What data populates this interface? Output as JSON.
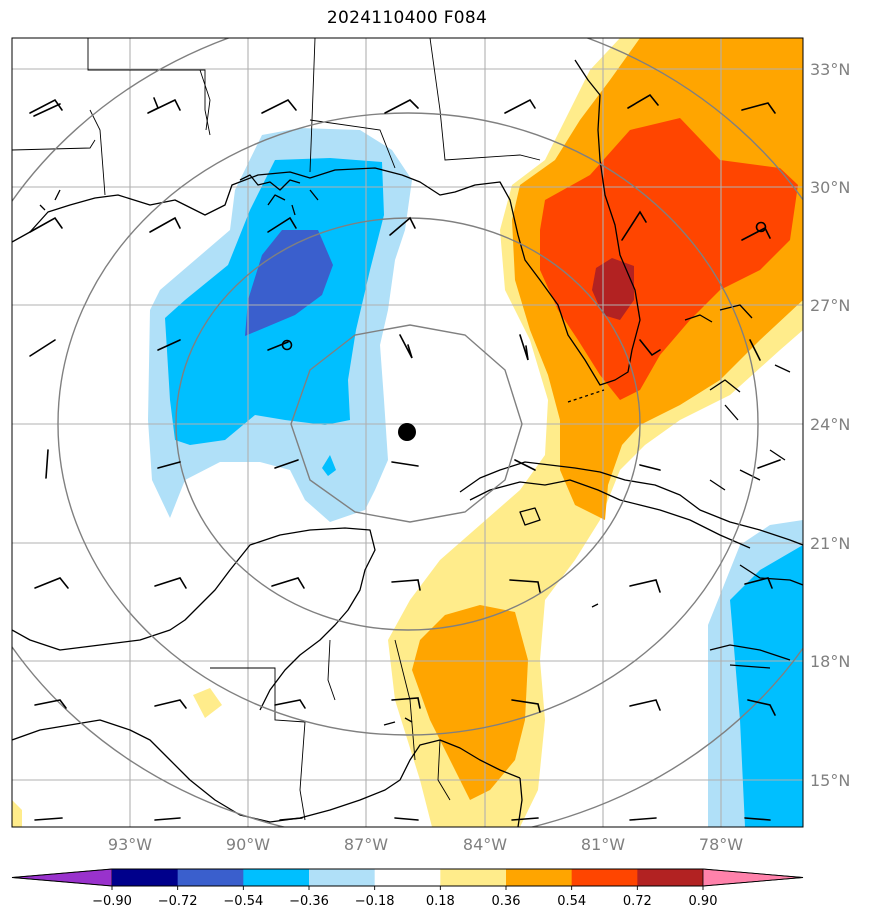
{
  "title": "2024110400 F084",
  "lat_labels": [
    "33°N",
    "30°N",
    "27°N",
    "24°N",
    "21°N",
    "18°N",
    "15°N"
  ],
  "lon_labels": [
    "93°W",
    "90°W",
    "87°W",
    "84°W",
    "81°W",
    "78°W"
  ],
  "colorbar": {
    "ticks": [
      "−0.90",
      "−0.72",
      "−0.54",
      "−0.36",
      "−0.18",
      "0.18",
      "0.36",
      "0.54",
      "0.72",
      "0.90"
    ],
    "colors": [
      "#9932cc",
      "#00008b",
      "#3a5fcd",
      "#00bfff",
      "#b0e0f8",
      "#ffffff",
      "#ffec8b",
      "#ffa500",
      "#ff4500",
      "#b22222",
      "#ff82ab"
    ]
  },
  "storm_center": {
    "lat": 23.8,
    "lon": 85.8
  }
}
